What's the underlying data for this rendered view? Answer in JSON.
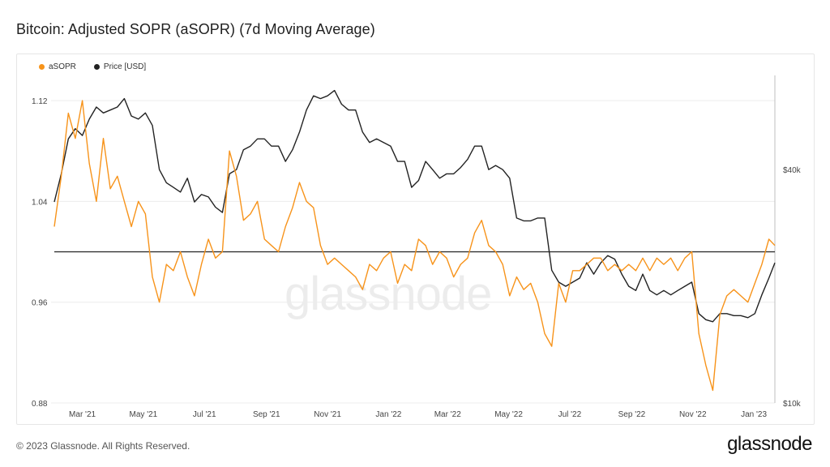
{
  "page": {
    "title": "Bitcoin: Adjusted SOPR (aSOPR) (7d Moving Average)",
    "copyright": "© 2023 Glassnode. All Rights Reserved.",
    "brand": "glassnode",
    "watermark": "glassnode"
  },
  "colors": {
    "asopr": "#f7931a",
    "price": "#222222",
    "baseline": "#333333",
    "grid": "#ececec",
    "axis_text": "#444444"
  },
  "chart_data": {
    "type": "line",
    "legend": [
      {
        "name": "aSOPR",
        "color": "#f7931a"
      },
      {
        "name": "Price [USD]",
        "color": "#222222"
      }
    ],
    "legend_position": "top-left",
    "x_ticks": [
      "Mar '21",
      "May '21",
      "Jul '21",
      "Sep '21",
      "Nov '21",
      "Jan '22",
      "Mar '22",
      "May '22",
      "Jul '22",
      "Sep '22",
      "Nov '22",
      "Jan '23"
    ],
    "x_range": [
      "2021-02-01",
      "2023-01-22"
    ],
    "y_left": {
      "ticks": [
        "1.12",
        "1.04",
        "0.96",
        "0.88"
      ],
      "tick_values": [
        1.12,
        1.04,
        0.96,
        0.88
      ],
      "ylim": [
        0.88,
        1.14
      ]
    },
    "y_right": {
      "ticks": [
        "$40k",
        "$10k"
      ],
      "tick_values": [
        40000,
        10000
      ],
      "scale": "log",
      "ylim": [
        10000,
        70000
      ]
    },
    "baseline": 1.0,
    "grid": true,
    "series": [
      {
        "name": "aSOPR",
        "axis": "left",
        "x": [
          "2021-02-01",
          "2021-02-08",
          "2021-02-15",
          "2021-02-22",
          "2021-03-01",
          "2021-03-08",
          "2021-03-15",
          "2021-03-22",
          "2021-03-29",
          "2021-04-05",
          "2021-04-12",
          "2021-04-19",
          "2021-04-26",
          "2021-05-03",
          "2021-05-10",
          "2021-05-17",
          "2021-05-24",
          "2021-05-31",
          "2021-06-07",
          "2021-06-14",
          "2021-06-21",
          "2021-06-28",
          "2021-07-05",
          "2021-07-12",
          "2021-07-19",
          "2021-07-26",
          "2021-08-02",
          "2021-08-09",
          "2021-08-16",
          "2021-08-23",
          "2021-08-30",
          "2021-09-06",
          "2021-09-13",
          "2021-09-20",
          "2021-09-27",
          "2021-10-04",
          "2021-10-11",
          "2021-10-18",
          "2021-10-25",
          "2021-11-01",
          "2021-11-08",
          "2021-11-15",
          "2021-11-22",
          "2021-11-29",
          "2021-12-06",
          "2021-12-13",
          "2021-12-20",
          "2021-12-27",
          "2022-01-03",
          "2022-01-10",
          "2022-01-17",
          "2022-01-24",
          "2022-01-31",
          "2022-02-07",
          "2022-02-14",
          "2022-02-21",
          "2022-02-28",
          "2022-03-07",
          "2022-03-14",
          "2022-03-21",
          "2022-03-28",
          "2022-04-04",
          "2022-04-11",
          "2022-04-18",
          "2022-04-25",
          "2022-05-02",
          "2022-05-09",
          "2022-05-16",
          "2022-05-23",
          "2022-05-30",
          "2022-06-06",
          "2022-06-13",
          "2022-06-20",
          "2022-06-27",
          "2022-07-04",
          "2022-07-11",
          "2022-07-18",
          "2022-07-25",
          "2022-08-01",
          "2022-08-08",
          "2022-08-15",
          "2022-08-22",
          "2022-08-29",
          "2022-09-05",
          "2022-09-12",
          "2022-09-19",
          "2022-09-26",
          "2022-10-03",
          "2022-10-10",
          "2022-10-17",
          "2022-10-24",
          "2022-10-31",
          "2022-11-07",
          "2022-11-14",
          "2022-11-21",
          "2022-11-28",
          "2022-12-05",
          "2022-12-12",
          "2022-12-19",
          "2022-12-26",
          "2023-01-02",
          "2023-01-09",
          "2023-01-16",
          "2023-01-22"
        ],
        "values": [
          1.02,
          1.06,
          1.11,
          1.09,
          1.12,
          1.07,
          1.04,
          1.09,
          1.05,
          1.06,
          1.04,
          1.02,
          1.04,
          1.03,
          0.98,
          0.96,
          0.99,
          0.985,
          1.0,
          0.98,
          0.965,
          0.99,
          1.01,
          0.995,
          1.0,
          1.08,
          1.06,
          1.025,
          1.03,
          1.04,
          1.01,
          1.005,
          1.0,
          1.02,
          1.035,
          1.055,
          1.04,
          1.035,
          1.005,
          0.99,
          0.995,
          0.99,
          0.985,
          0.98,
          0.97,
          0.99,
          0.985,
          0.995,
          1.0,
          0.975,
          0.99,
          0.985,
          1.01,
          1.005,
          0.99,
          1.0,
          0.995,
          0.98,
          0.99,
          0.995,
          1.015,
          1.025,
          1.005,
          1.0,
          0.99,
          0.965,
          0.98,
          0.97,
          0.975,
          0.96,
          0.935,
          0.925,
          0.975,
          0.96,
          0.985,
          0.985,
          0.99,
          0.995,
          0.995,
          0.985,
          0.99,
          0.985,
          0.99,
          0.985,
          0.995,
          0.985,
          0.995,
          0.99,
          0.995,
          0.985,
          0.995,
          1.0,
          0.935,
          0.91,
          0.89,
          0.95,
          0.965,
          0.97,
          0.965,
          0.96,
          0.975,
          0.99,
          1.01,
          1.005
        ]
      },
      {
        "name": "Price [USD]",
        "axis": "right",
        "x": [
          "2021-02-01",
          "2021-02-08",
          "2021-02-15",
          "2021-02-22",
          "2021-03-01",
          "2021-03-08",
          "2021-03-15",
          "2021-03-22",
          "2021-03-29",
          "2021-04-05",
          "2021-04-12",
          "2021-04-19",
          "2021-04-26",
          "2021-05-03",
          "2021-05-10",
          "2021-05-17",
          "2021-05-24",
          "2021-05-31",
          "2021-06-07",
          "2021-06-14",
          "2021-06-21",
          "2021-06-28",
          "2021-07-05",
          "2021-07-12",
          "2021-07-19",
          "2021-07-26",
          "2021-08-02",
          "2021-08-09",
          "2021-08-16",
          "2021-08-23",
          "2021-08-30",
          "2021-09-06",
          "2021-09-13",
          "2021-09-20",
          "2021-09-27",
          "2021-10-04",
          "2021-10-11",
          "2021-10-18",
          "2021-10-25",
          "2021-11-01",
          "2021-11-08",
          "2021-11-15",
          "2021-11-22",
          "2021-11-29",
          "2021-12-06",
          "2021-12-13",
          "2021-12-20",
          "2021-12-27",
          "2022-01-03",
          "2022-01-10",
          "2022-01-17",
          "2022-01-24",
          "2022-01-31",
          "2022-02-07",
          "2022-02-14",
          "2022-02-21",
          "2022-02-28",
          "2022-03-07",
          "2022-03-14",
          "2022-03-21",
          "2022-03-28",
          "2022-04-04",
          "2022-04-11",
          "2022-04-18",
          "2022-04-25",
          "2022-05-02",
          "2022-05-09",
          "2022-05-16",
          "2022-05-23",
          "2022-05-30",
          "2022-06-06",
          "2022-06-13",
          "2022-06-20",
          "2022-06-27",
          "2022-07-04",
          "2022-07-11",
          "2022-07-18",
          "2022-07-25",
          "2022-08-01",
          "2022-08-08",
          "2022-08-15",
          "2022-08-22",
          "2022-08-29",
          "2022-09-05",
          "2022-09-12",
          "2022-09-19",
          "2022-09-26",
          "2022-10-03",
          "2022-10-10",
          "2022-10-17",
          "2022-10-24",
          "2022-10-31",
          "2022-11-07",
          "2022-11-14",
          "2022-11-21",
          "2022-11-28",
          "2022-12-05",
          "2022-12-12",
          "2022-12-19",
          "2022-12-26",
          "2023-01-02",
          "2023-01-09",
          "2023-01-16",
          "2023-01-22"
        ],
        "values": [
          33000,
          39000,
          48000,
          51000,
          49000,
          54000,
          58000,
          56000,
          57000,
          58000,
          61000,
          55000,
          54000,
          56000,
          52000,
          40000,
          37000,
          36000,
          35000,
          38000,
          33000,
          34500,
          34000,
          32000,
          31000,
          39000,
          40000,
          45000,
          46000,
          48000,
          48000,
          46000,
          46000,
          42000,
          45000,
          50000,
          57000,
          62000,
          61000,
          62000,
          64000,
          59000,
          57000,
          57000,
          50000,
          47000,
          48000,
          47000,
          46000,
          42000,
          42000,
          36000,
          37500,
          42000,
          40000,
          38000,
          39000,
          39000,
          40500,
          42500,
          46000,
          46000,
          40000,
          41000,
          40000,
          38000,
          30000,
          29500,
          29500,
          30000,
          30000,
          22000,
          20500,
          20000,
          20500,
          21000,
          23000,
          21500,
          23000,
          24000,
          23500,
          21500,
          20000,
          19500,
          21500,
          19500,
          19000,
          19500,
          19000,
          19500,
          20000,
          20500,
          17000,
          16400,
          16200,
          17000,
          17000,
          16800,
          16800,
          16600,
          17000,
          19000,
          21000,
          23000
        ]
      }
    ]
  }
}
